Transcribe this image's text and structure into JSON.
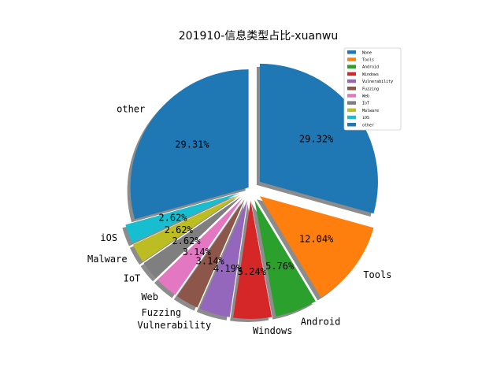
{
  "chart_data": {
    "type": "pie",
    "title": "201910-信息类型占比-xuanwu",
    "start_angle_deg": 90,
    "direction": "clockwise",
    "shadow": true,
    "legend_position": "top-right",
    "slices": [
      {
        "label": "None",
        "percent": 29.32,
        "pct_text": "29.32%",
        "color": "#1f77b4",
        "explode": 0.1
      },
      {
        "label": "Tools",
        "percent": 12.04,
        "pct_text": "12.04%",
        "color": "#ff7f0e",
        "explode": 0.1
      },
      {
        "label": "Android",
        "percent": 5.76,
        "pct_text": "5.76%",
        "color": "#2ca02c",
        "explode": 0.1
      },
      {
        "label": "Windows",
        "percent": 5.24,
        "pct_text": "5.24%",
        "color": "#d62728",
        "explode": 0.1
      },
      {
        "label": "Vulnerability",
        "percent": 4.19,
        "pct_text": "4.19%",
        "color": "#9467bd",
        "explode": 0.1
      },
      {
        "label": "Fuzzing",
        "percent": 3.14,
        "pct_text": "3.14%",
        "color": "#8c564b",
        "explode": 0.1
      },
      {
        "label": "Web",
        "percent": 3.14,
        "pct_text": "3.14%",
        "color": "#e377c2",
        "explode": 0.1
      },
      {
        "label": "IoT",
        "percent": 2.62,
        "pct_text": "2.62%",
        "color": "#7f7f7f",
        "explode": 0.1
      },
      {
        "label": "Malware",
        "percent": 2.62,
        "pct_text": "2.62%",
        "color": "#bcbd22",
        "explode": 0.1
      },
      {
        "label": "iOS",
        "percent": 2.62,
        "pct_text": "2.62%",
        "color": "#17becf",
        "explode": 0.1
      },
      {
        "label": "other",
        "percent": 29.31,
        "pct_text": "29.31%",
        "color": "#1f77b4",
        "explode": 0.02
      }
    ]
  }
}
